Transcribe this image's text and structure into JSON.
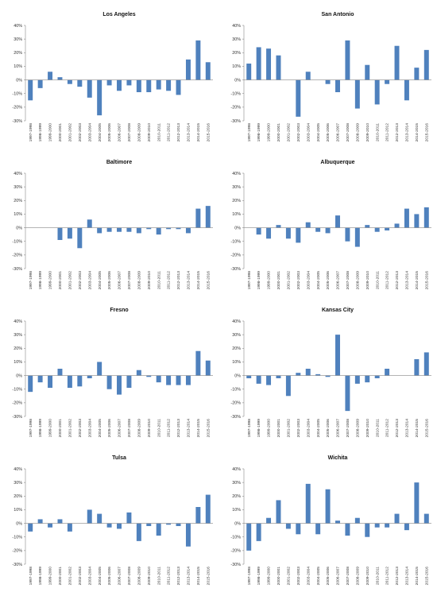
{
  "chart_data": [
    {
      "type": "bar",
      "title": "Los Angeles",
      "categories": [
        "1997-1998",
        "1998-1999",
        "1999-2000",
        "2000-2001",
        "2001-2002",
        "2002-2003",
        "2003-2004",
        "2004-2005",
        "2005-2006",
        "2006-2007",
        "2007-2008",
        "2008-2009",
        "2009-2010",
        "2010-2011",
        "2011-2012",
        "2012-2013",
        "2013-2014",
        "2014-2015",
        "2015-2016"
      ],
      "values": [
        -15,
        -6,
        6,
        2,
        -3,
        -5,
        -13,
        -26,
        -4,
        -8,
        -4,
        -9,
        -9,
        -7,
        -8,
        -11,
        15,
        29,
        13
      ],
      "ylim": [
        -30,
        40
      ],
      "yticks": [
        "40%",
        "30%",
        "20%",
        "10%",
        "0%",
        "-10%",
        "-20%",
        "-30%"
      ],
      "color": "#4f81bd",
      "xlabel": "",
      "ylabel": ""
    },
    {
      "type": "bar",
      "title": "San Antonio",
      "categories": [
        "1997-1998",
        "1998-1999",
        "1999-2000",
        "2000-2001",
        "2001-2002",
        "2002-2003",
        "2003-2004",
        "2004-2005",
        "2005-2006",
        "2006-2007",
        "2007-2008",
        "2008-2009",
        "2009-2010",
        "2010-2011",
        "2011-2012",
        "2012-2013",
        "2013-2014",
        "2014-2015",
        "2015-2016"
      ],
      "values": [
        12,
        24,
        23,
        18,
        0,
        -27,
        6,
        0,
        -3,
        -9,
        29,
        -21,
        11,
        -18,
        -3,
        25,
        -15,
        9,
        22
      ],
      "ylim": [
        -30,
        40
      ],
      "yticks": [
        "40%",
        "30%",
        "20%",
        "10%",
        "0%",
        "-10%",
        "-20%",
        "-30%"
      ],
      "color": "#4f81bd",
      "xlabel": "",
      "ylabel": ""
    },
    {
      "type": "bar",
      "title": "Baltimore",
      "categories": [
        "1997-1998",
        "1998-1999",
        "1999-2000",
        "2000-2001",
        "2001-2002",
        "2002-2003",
        "2003-2004",
        "2004-2005",
        "2005-2006",
        "2006-2007",
        "2007-2008",
        "2008-2009",
        "2009-2010",
        "2010-2011",
        "2011-2012",
        "2012-2013",
        "2013-2014",
        "2014-2015",
        "2015-2016"
      ],
      "values": [
        0,
        0,
        0,
        -9,
        -8,
        -15,
        6,
        -4,
        -3,
        -3,
        -3,
        -4,
        -1,
        -5,
        -1,
        -1,
        -4,
        14,
        16
      ],
      "ylim": [
        -30,
        40
      ],
      "yticks": [
        "40%",
        "30%",
        "20%",
        "10%",
        "0%",
        "-10%",
        "-20%",
        "-30%"
      ],
      "color": "#4f81bd",
      "xlabel": "",
      "ylabel": ""
    },
    {
      "type": "bar",
      "title": "Albuquerque",
      "categories": [
        "1997-1998",
        "1998-1999",
        "1999-2000",
        "2000-2001",
        "2001-2002",
        "2002-2003",
        "2003-2004",
        "2004-2005",
        "2005-2006",
        "2006-2007",
        "2007-2008",
        "2008-2009",
        "2009-2010",
        "2010-2011",
        "2011-2012",
        "2012-2013",
        "2013-2014",
        "2014-2015",
        "2015-2016"
      ],
      "values": [
        0,
        -5,
        -8,
        2,
        -8,
        -11,
        4,
        -3,
        -4,
        9,
        -10,
        -14,
        2,
        -3,
        -2,
        3,
        14,
        10,
        15
      ],
      "ylim": [
        -30,
        40
      ],
      "yticks": [
        "40%",
        "30%",
        "20%",
        "10%",
        "0%",
        "-10%",
        "-20%",
        "-30%"
      ],
      "color": "#4f81bd",
      "xlabel": "",
      "ylabel": ""
    },
    {
      "type": "bar",
      "title": "Fresno",
      "categories": [
        "1997-1998",
        "1998-1999",
        "1999-2000",
        "2000-2001",
        "2001-2002",
        "2002-2003",
        "2003-2004",
        "2004-2005",
        "2005-2006",
        "2006-2007",
        "2007-2008",
        "2008-2009",
        "2009-2010",
        "2010-2011",
        "2011-2012",
        "2012-2013",
        "2013-2014",
        "2014-2015",
        "2015-2016"
      ],
      "values": [
        -12,
        -5,
        -9,
        5,
        -9,
        -8,
        -2,
        10,
        -10,
        -14,
        -9,
        4,
        -1,
        -5,
        -7,
        -7,
        -7,
        18,
        11
      ],
      "ylim": [
        -30,
        40
      ],
      "yticks": [
        "40%",
        "30%",
        "20%",
        "10%",
        "0%",
        "-10%",
        "-20%",
        "-30%"
      ],
      "color": "#4f81bd",
      "xlabel": "",
      "ylabel": ""
    },
    {
      "type": "bar",
      "title": "Kansas City",
      "categories": [
        "1997-1998",
        "1998-1999",
        "1999-2000",
        "2000-2001",
        "2001-2002",
        "2002-2003",
        "2003-2004",
        "2004-2005",
        "2005-2006",
        "2006-2007",
        "2007-2008",
        "2008-2009",
        "2009-2010",
        "2010-2011",
        "2011-2012",
        "2012-2013",
        "2013-2014",
        "2014-2015",
        "2015-2016"
      ],
      "values": [
        -2,
        -6,
        -7,
        -2,
        -15,
        2,
        5,
        1,
        -1,
        30,
        -26,
        -6,
        -5,
        -2,
        5,
        0,
        0,
        12,
        17
      ],
      "ylim": [
        -30,
        40
      ],
      "yticks": [
        "40%",
        "30%",
        "20%",
        "10%",
        "0%",
        "-10%",
        "-20%",
        "-30%"
      ],
      "color": "#4f81bd",
      "xlabel": "",
      "ylabel": ""
    },
    {
      "type": "bar",
      "title": "Tulsa",
      "categories": [
        "1997-1998",
        "1998-1999",
        "1999-2000",
        "2000-2001",
        "2001-2002",
        "2002-2003",
        "2003-2004",
        "2004-2005",
        "2005-2006",
        "2006-2007",
        "2007-2008",
        "2008-2009",
        "2009-2010",
        "2010-2011",
        "2011-2012",
        "2012-2013",
        "2013-2014",
        "2014-2015",
        "2015-2016"
      ],
      "values": [
        -6,
        3,
        -3,
        3,
        -6,
        0,
        10,
        7,
        -3,
        -4,
        8,
        -13,
        -2,
        -9,
        -1,
        -2,
        -17,
        12,
        21
      ],
      "ylim": [
        -30,
        40
      ],
      "yticks": [
        "40%",
        "30%",
        "20%",
        "10%",
        "0%",
        "-10%",
        "-20%",
        "-30%"
      ],
      "color": "#4f81bd",
      "xlabel": "",
      "ylabel": ""
    },
    {
      "type": "bar",
      "title": "Wichita",
      "categories": [
        "1997-1998",
        "1998-1999",
        "1999-2000",
        "2000-2001",
        "2001-2002",
        "2002-2003",
        "2003-2004",
        "2004-2005",
        "2005-2006",
        "2006-2007",
        "2007-2008",
        "2008-2009",
        "2009-2010",
        "2010-2011",
        "2011-2012",
        "2012-2013",
        "2013-2014",
        "2014-2015",
        "2015-2016"
      ],
      "values": [
        -20,
        -13,
        4,
        17,
        -4,
        -8,
        29,
        -8,
        25,
        2,
        -9,
        4,
        -10,
        -3,
        -3,
        7,
        -5,
        30,
        7
      ],
      "ylim": [
        -30,
        40
      ],
      "yticks": [
        "40%",
        "30%",
        "20%",
        "10%",
        "0%",
        "-10%",
        "-20%",
        "-30%"
      ],
      "color": "#4f81bd",
      "xlabel": "",
      "ylabel": ""
    }
  ]
}
